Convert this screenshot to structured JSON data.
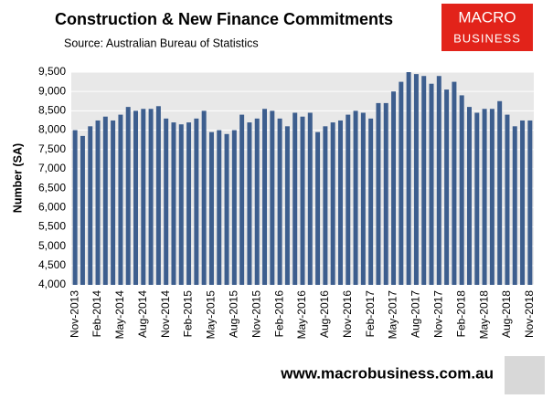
{
  "chart_data": {
    "type": "bar",
    "title": "Construction & New Finance Commitments",
    "subtitle": "Source: Australian Bureau of Statistics",
    "y_label": "Number (SA)",
    "logo": [
      "MACRO",
      "BUSINESS"
    ],
    "footer": "www.macrobusiness.com.au",
    "color": "#3d5e8e",
    "grid": true,
    "categories": [
      "Nov-2013",
      null,
      null,
      "Feb-2014",
      null,
      null,
      "May-2014",
      null,
      null,
      "Aug-2014",
      null,
      null,
      "Nov-2014",
      null,
      null,
      "Feb-2015",
      null,
      null,
      "May-2015",
      null,
      null,
      "Aug-2015",
      null,
      null,
      "Nov-2015",
      null,
      null,
      "Feb-2016",
      null,
      null,
      "May-2016",
      null,
      null,
      "Aug-2016",
      null,
      null,
      "Nov-2016",
      null,
      null,
      "Feb-2017",
      null,
      null,
      "May-2017",
      null,
      null,
      "Aug-2017",
      null,
      null,
      "Nov-2017",
      null,
      null,
      "Feb-2018",
      null,
      null,
      "May-2018",
      null,
      null,
      "Aug-2018",
      null,
      null,
      "Nov-2018"
    ],
    "values": [
      8000,
      7850,
      8100,
      8250,
      8350,
      8250,
      8400,
      8600,
      8500,
      8550,
      8550,
      8620,
      8300,
      8200,
      8150,
      8200,
      8300,
      8500,
      7950,
      8000,
      7900,
      8000,
      8400,
      8200,
      8300,
      8550,
      8500,
      8300,
      8100,
      8450,
      8350,
      8450,
      7950,
      8100,
      8200,
      8250,
      8400,
      8500,
      8450,
      8300,
      8700,
      8700,
      9000,
      9250,
      9500,
      9450,
      9400,
      9200,
      9400,
      9050,
      9250,
      8900,
      8600,
      8450,
      8550,
      8550,
      8750,
      8400,
      8100,
      8250,
      8250
    ],
    "ylim": [
      4000,
      9500
    ],
    "yticks": [
      {
        "value": 4000,
        "label": "4,000"
      },
      {
        "value": 4500,
        "label": "4,500"
      },
      {
        "value": 5000,
        "label": "5,000"
      },
      {
        "value": 5500,
        "label": "5,500"
      },
      {
        "value": 6000,
        "label": "6,000"
      },
      {
        "value": 6500,
        "label": "6,500"
      },
      {
        "value": 7000,
        "label": "7,000"
      },
      {
        "value": 7500,
        "label": "7,500"
      },
      {
        "value": 8000,
        "label": "8,000"
      },
      {
        "value": 8500,
        "label": "8,500"
      },
      {
        "value": 9000,
        "label": "9,000"
      },
      {
        "value": 9500,
        "label": "9,500"
      }
    ]
  }
}
